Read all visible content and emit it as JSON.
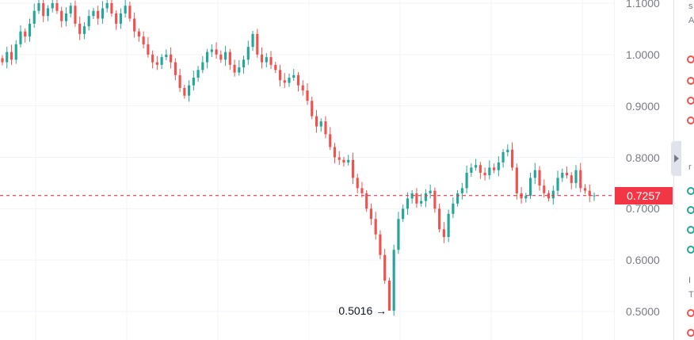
{
  "chart_data": {
    "type": "candlestick",
    "y_range": [
      0.48,
      1.11
    ],
    "y_ticks": [
      "1.1000",
      "1.0000",
      "0.9000",
      "0.8000",
      "0.7000",
      "0.6000",
      "0.5000"
    ],
    "current_price": "0.7257",
    "low_marker": "0.5016 →",
    "grid": true,
    "up_color": "#26a69a",
    "down_color": "#ef5350",
    "price_line_color": "#f23645",
    "closes": [
      0.985,
      1.005,
      0.99,
      1.02,
      1.045,
      1.035,
      1.06,
      1.085,
      1.1,
      1.075,
      1.09,
      1.1,
      1.085,
      1.065,
      1.08,
      1.095,
      1.06,
      1.04,
      1.055,
      1.075,
      1.085,
      1.07,
      1.09,
      1.1,
      1.08,
      1.06,
      1.08,
      1.095,
      1.07,
      1.045,
      1.035,
      1.02,
      1.0,
      0.985,
      0.98,
      0.995,
      1.0,
      0.985,
      0.96,
      0.935,
      0.92,
      0.94,
      0.955,
      0.97,
      0.985,
      1.005,
      1.01,
      1.0,
      0.99,
      1.005,
      0.98,
      0.965,
      0.975,
      0.99,
      1.015,
      1.04,
      1.0,
      0.985,
      0.995,
      0.98,
      0.97,
      0.95,
      0.945,
      0.955,
      0.96,
      0.94,
      0.93,
      0.91,
      0.88,
      0.86,
      0.87,
      0.845,
      0.82,
      0.8,
      0.795,
      0.79,
      0.795,
      0.76,
      0.74,
      0.73,
      0.7,
      0.68,
      0.65,
      0.61,
      0.56,
      0.5016,
      0.62,
      0.68,
      0.7,
      0.72,
      0.73,
      0.71,
      0.715,
      0.73,
      0.735,
      0.7,
      0.66,
      0.645,
      0.69,
      0.71,
      0.73,
      0.74,
      0.77,
      0.78,
      0.785,
      0.77,
      0.765,
      0.78,
      0.775,
      0.79,
      0.81,
      0.815,
      0.78,
      0.73,
      0.72,
      0.725,
      0.76,
      0.775,
      0.745,
      0.73,
      0.72,
      0.735,
      0.76,
      0.77,
      0.765,
      0.75,
      0.775,
      0.74,
      0.735,
      0.725,
      0.7257
    ]
  },
  "right_strip": {
    "collapse_icon": "chevron-right-icon",
    "letters": [
      "s",
      "A",
      "r",
      "I",
      "T"
    ]
  }
}
